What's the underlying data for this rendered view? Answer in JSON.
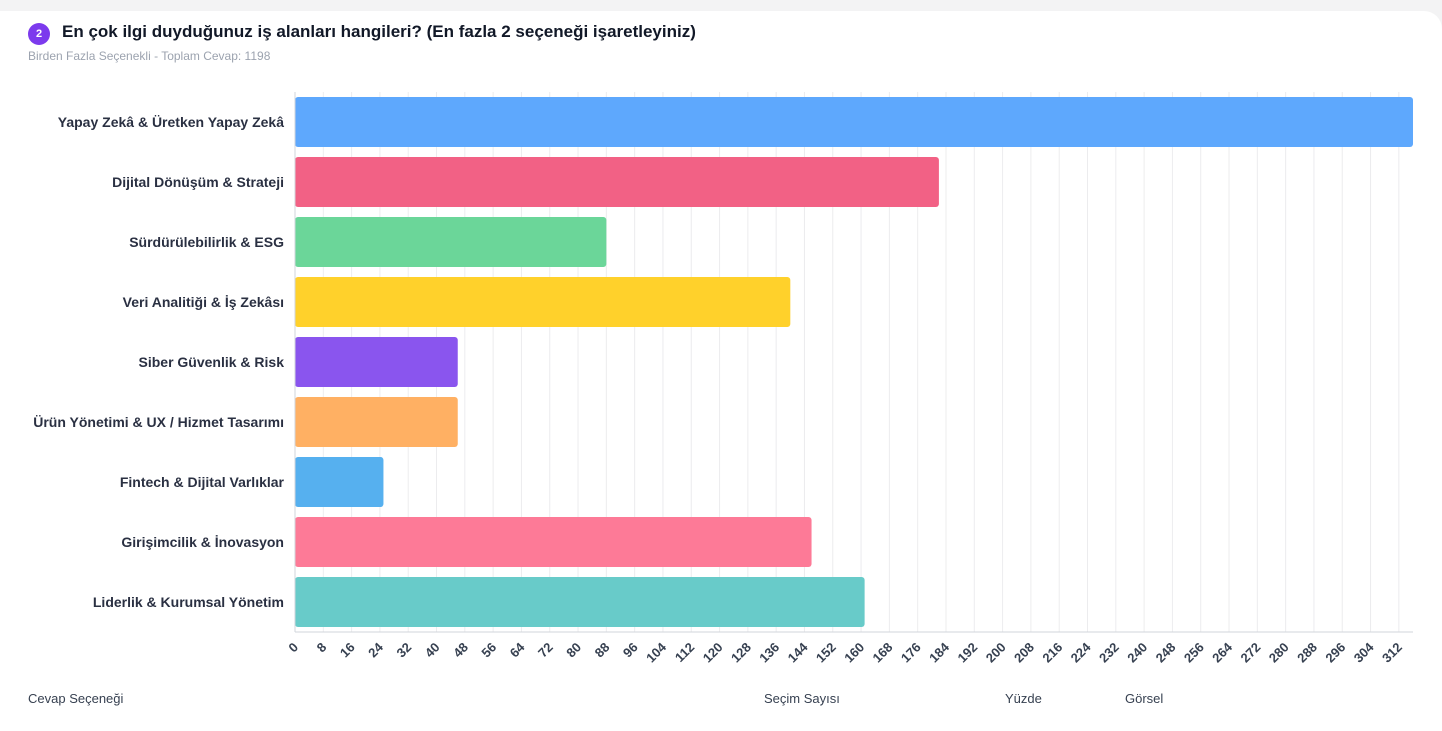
{
  "question": {
    "number": "2",
    "title": "En çok ilgi duyduğunuz iş alanları hangileri? (En fazla 2 seçeneği işaretleyiniz)",
    "type_label": "Birden Fazla Seçenekli",
    "separator": " - ",
    "total_label": "Toplam Cevap: 1198"
  },
  "chart_data": {
    "type": "bar",
    "orientation": "horizontal",
    "title": "En çok ilgi duyduğunuz iş alanları hangileri? (En fazla 2 seçeneği işaretleyiniz)",
    "categories": [
      "Yapay Zekâ & Üretken Yapay Zekâ",
      "Dijital Dönüşüm & Strateji",
      "Sürdürülebilirlik & ESG",
      "Veri Analitiği & İş Zekâsı",
      "Siber Güvenlik & Risk",
      "Ürün Yönetimi & UX / Hizmet Tasarımı",
      "Fintech & Dijital Varlıklar",
      "Girişimcilik & İnovasyon",
      "Liderlik & Kurumsal Yönetim"
    ],
    "values": [
      316,
      182,
      88,
      140,
      46,
      46,
      25,
      146,
      161
    ],
    "colors": [
      "#5ea8fd",
      "#f26185",
      "#6bd699",
      "#ffd12b",
      "#8a55ee",
      "#ffb063",
      "#56b0ef",
      "#fd7a97",
      "#68cbc9"
    ],
    "xlim": [
      0,
      316
    ],
    "xticks": [
      0,
      8,
      16,
      24,
      32,
      40,
      48,
      56,
      64,
      72,
      80,
      88,
      96,
      104,
      112,
      120,
      128,
      136,
      144,
      152,
      160,
      168,
      176,
      184,
      192,
      200,
      208,
      216,
      224,
      232,
      240,
      248,
      256,
      264,
      272,
      280,
      288,
      296,
      304,
      312
    ],
    "grid": true
  },
  "table": {
    "headers": [
      "Cevap Seçeneği",
      "Seçim Sayısı",
      "Yüzde",
      "Görsel"
    ]
  }
}
